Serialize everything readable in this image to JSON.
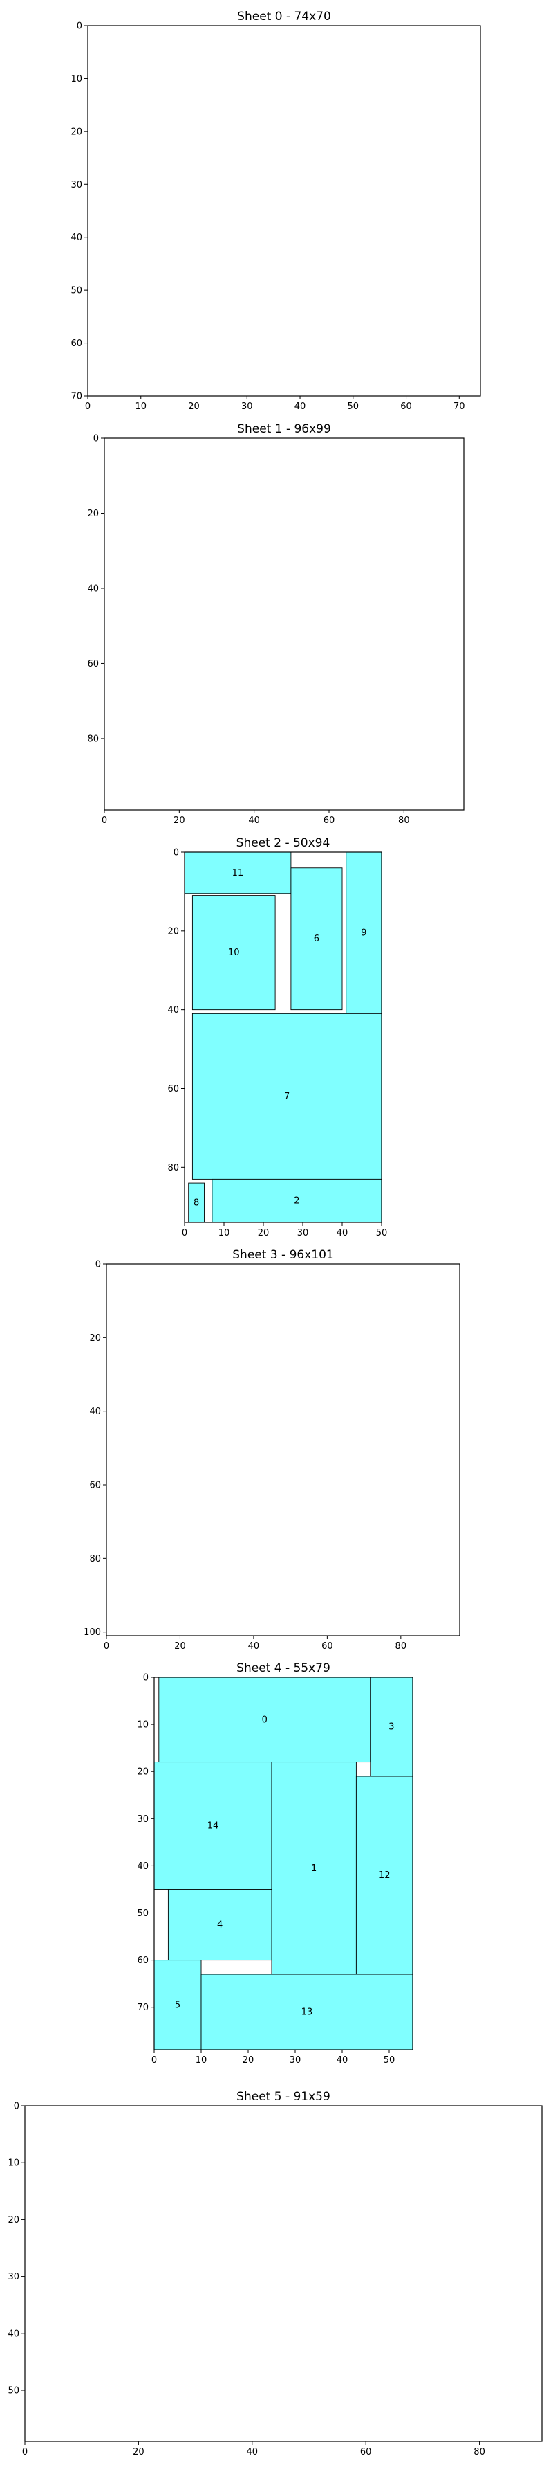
{
  "chart_data": [
    {
      "type": "sheet-layout",
      "title": "Sheet 0 - 74x70",
      "width": 74,
      "height": 70,
      "xticks": [
        0,
        10,
        20,
        30,
        40,
        50,
        60,
        70
      ],
      "yticks": [
        0,
        10,
        20,
        30,
        40,
        50,
        60,
        70
      ],
      "pieces": []
    },
    {
      "type": "sheet-layout",
      "title": "Sheet 1 - 96x99",
      "width": 96,
      "height": 99,
      "xticks": [
        0,
        20,
        40,
        60,
        80
      ],
      "yticks": [
        0,
        20,
        40,
        60,
        80
      ],
      "pieces": []
    },
    {
      "type": "sheet-layout",
      "title": "Sheet 2 - 50x94",
      "width": 50,
      "height": 94,
      "xticks": [
        0,
        10,
        20,
        30,
        40,
        50
      ],
      "yticks": [
        0,
        20,
        40,
        60,
        80
      ],
      "pieces": [
        {
          "label": "11",
          "x": 0,
          "y": 0,
          "w": 27,
          "h": 10.5
        },
        {
          "label": "10",
          "x": 2,
          "y": 11,
          "w": 21,
          "h": 29
        },
        {
          "label": "6",
          "x": 27,
          "y": 4,
          "w": 13,
          "h": 36
        },
        {
          "label": "9",
          "x": 41,
          "y": 0,
          "w": 9,
          "h": 41
        },
        {
          "label": "7",
          "x": 2,
          "y": 41,
          "w": 48,
          "h": 42
        },
        {
          "label": "8",
          "x": 1,
          "y": 84,
          "w": 4,
          "h": 10
        },
        {
          "label": "2",
          "x": 7,
          "y": 83,
          "w": 43,
          "h": 11
        }
      ]
    },
    {
      "type": "sheet-layout",
      "title": "Sheet 3 - 96x101",
      "width": 96,
      "height": 101,
      "xticks": [
        0,
        20,
        40,
        60,
        80
      ],
      "yticks": [
        0,
        20,
        40,
        60,
        80,
        100
      ],
      "pieces": []
    },
    {
      "type": "sheet-layout",
      "title": "Sheet 4 - 55x79",
      "width": 55,
      "height": 79,
      "xticks": [
        0,
        10,
        20,
        30,
        40,
        50
      ],
      "yticks": [
        0,
        10,
        20,
        30,
        40,
        50,
        60,
        70
      ],
      "pieces": [
        {
          "label": "0",
          "x": 1,
          "y": 0,
          "w": 45,
          "h": 18
        },
        {
          "label": "3",
          "x": 46,
          "y": 0,
          "w": 9,
          "h": 21
        },
        {
          "label": "14",
          "x": 0,
          "y": 18,
          "w": 25,
          "h": 27
        },
        {
          "label": "1",
          "x": 25,
          "y": 18,
          "w": 18,
          "h": 45
        },
        {
          "label": "12",
          "x": 43,
          "y": 21,
          "w": 12,
          "h": 42
        },
        {
          "label": "4",
          "x": 3,
          "y": 45,
          "w": 22,
          "h": 15
        },
        {
          "label": "5",
          "x": 0,
          "y": 60,
          "w": 10,
          "h": 19
        },
        {
          "label": "13",
          "x": 10,
          "y": 63,
          "w": 45,
          "h": 16
        }
      ]
    },
    {
      "type": "sheet-layout",
      "title": "Sheet 5 - 91x59",
      "width": 91,
      "height": 59,
      "xticks": [
        0,
        20,
        40,
        60,
        80
      ],
      "yticks": [
        0,
        10,
        20,
        30,
        40,
        50
      ],
      "pieces": []
    }
  ]
}
